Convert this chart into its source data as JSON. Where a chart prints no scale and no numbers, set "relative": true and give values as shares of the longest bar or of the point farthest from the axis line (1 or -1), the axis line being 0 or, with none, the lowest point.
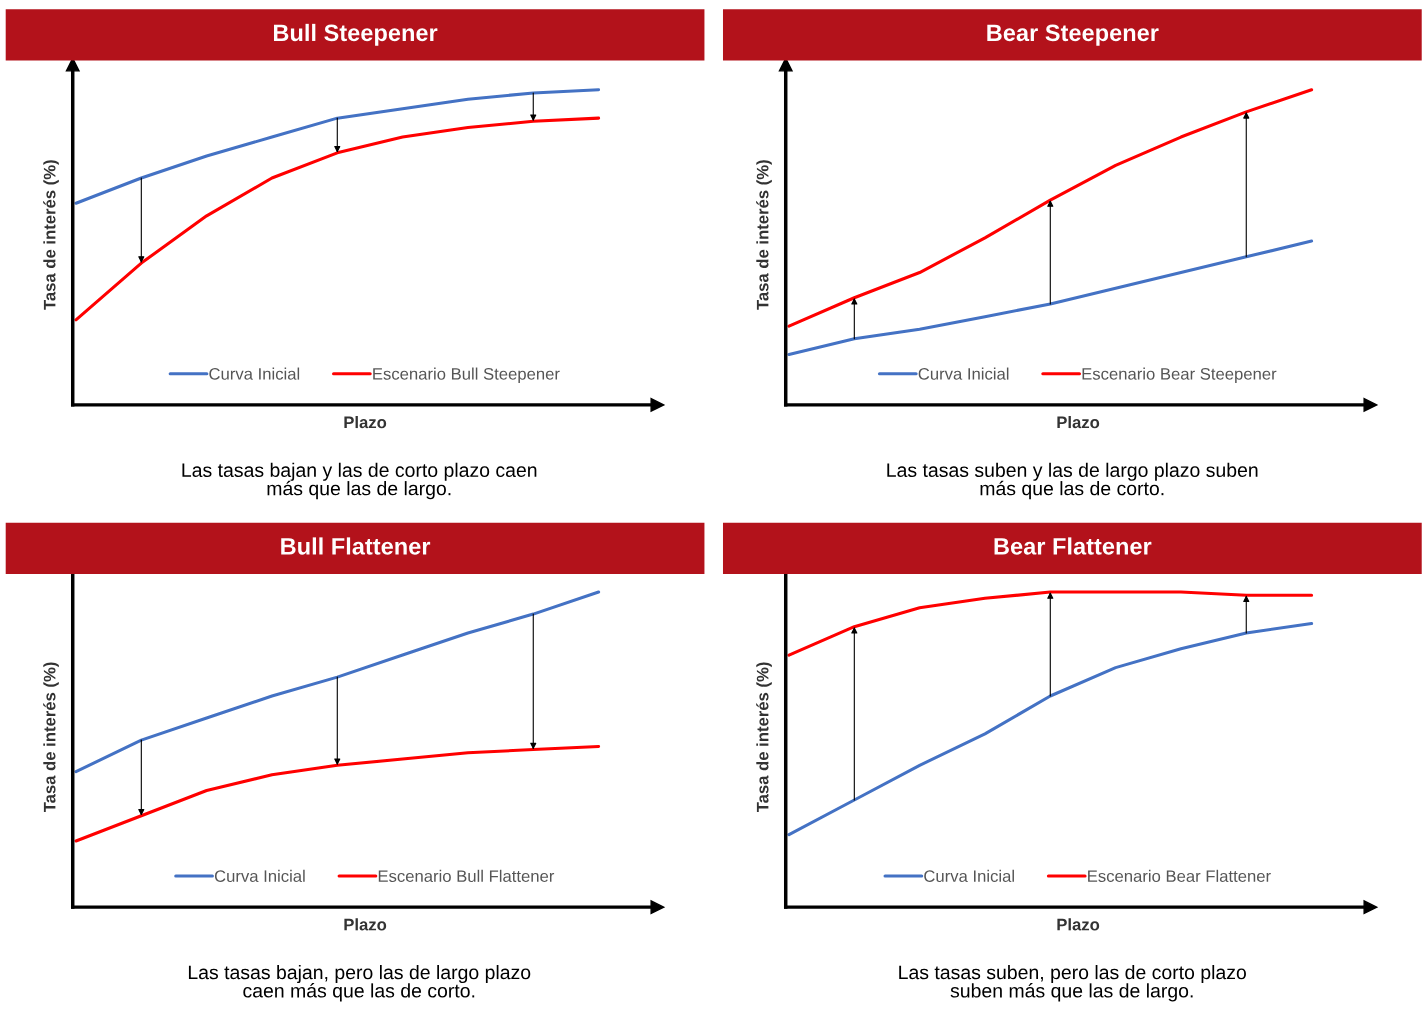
{
  "chart_data": [
    {
      "type": "line",
      "title": "Bull Steepener",
      "xlabel": "Plazo",
      "ylabel": "Tasa de interés (%)",
      "relative": true,
      "legend": "bottom",
      "annotations": [
        "Las tasas bajan y las de corto plazo caen\nmás que las de largo."
      ],
      "categories": [
        null,
        null,
        null,
        null,
        null,
        null,
        null,
        null,
        null
      ],
      "series": [
        {
          "name": "Curva Inicial",
          "color": "#4472c4",
          "values": [
            0.64,
            0.72,
            0.79,
            0.85,
            0.91,
            0.94,
            0.97,
            0.99,
            1.0
          ]
        },
        {
          "name": "Escenario Bull Steepener",
          "color": "#ff0000",
          "values": [
            0.27,
            0.45,
            0.6,
            0.72,
            0.8,
            0.85,
            0.88,
            0.9,
            0.91
          ]
        }
      ]
    },
    {
      "type": "line",
      "title": "Bear Steepener",
      "xlabel": "Plazo",
      "ylabel": "Tasa de interés (%)",
      "relative": true,
      "legend": "bottom",
      "annotations": [
        "Las tasas suben y las de largo plazo suben\nmás que las de corto."
      ],
      "categories": [
        null,
        null,
        null,
        null,
        null,
        null,
        null,
        null,
        null
      ],
      "series": [
        {
          "name": "Curva Inicial",
          "color": "#4472c4",
          "values": [
            0.16,
            0.21,
            0.24,
            0.28,
            0.32,
            0.37,
            0.42,
            0.47,
            0.52
          ]
        },
        {
          "name": "Escenario Bear Steepener",
          "color": "#ff0000",
          "values": [
            0.25,
            0.34,
            0.42,
            0.53,
            0.65,
            0.76,
            0.85,
            0.93,
            1.0
          ]
        }
      ]
    },
    {
      "type": "line",
      "title": "Bull Flattener",
      "xlabel": "Plazo",
      "ylabel": "Tasa de interés (%)",
      "relative": true,
      "legend": "bottom",
      "annotations": [
        "Las tasas bajan, pero las de largo plazo\ncaen más que las de corto."
      ],
      "categories": [
        null,
        null,
        null,
        null,
        null,
        null,
        null,
        null,
        null
      ],
      "series": [
        {
          "name": "Curva Inicial",
          "color": "#4472c4",
          "values": [
            0.43,
            0.53,
            0.6,
            0.67,
            0.73,
            0.8,
            0.87,
            0.93,
            1.0
          ]
        },
        {
          "name": "Escenario Bull Flattener",
          "color": "#ff0000",
          "values": [
            0.21,
            0.29,
            0.37,
            0.42,
            0.45,
            0.47,
            0.49,
            0.5,
            0.51
          ]
        }
      ]
    },
    {
      "type": "line",
      "title": "Bear Flattener",
      "xlabel": "Plazo",
      "ylabel": "Tasa de interés (%)",
      "relative": true,
      "legend": "bottom",
      "annotations": [
        "Las tasas suben, pero las de corto plazo\nsuben más que las de largo."
      ],
      "categories": [
        null,
        null,
        null,
        null,
        null,
        null,
        null,
        null,
        null
      ],
      "series": [
        {
          "name": "Curva Inicial",
          "color": "#4472c4",
          "values": [
            0.23,
            0.34,
            0.45,
            0.55,
            0.67,
            0.76,
            0.82,
            0.87,
            0.9
          ]
        },
        {
          "name": "Escenario Bear Flattener",
          "color": "#ff0000",
          "values": [
            0.8,
            0.89,
            0.95,
            0.98,
            1.0,
            1.0,
            1.0,
            0.99,
            0.99
          ]
        }
      ]
    }
  ]
}
